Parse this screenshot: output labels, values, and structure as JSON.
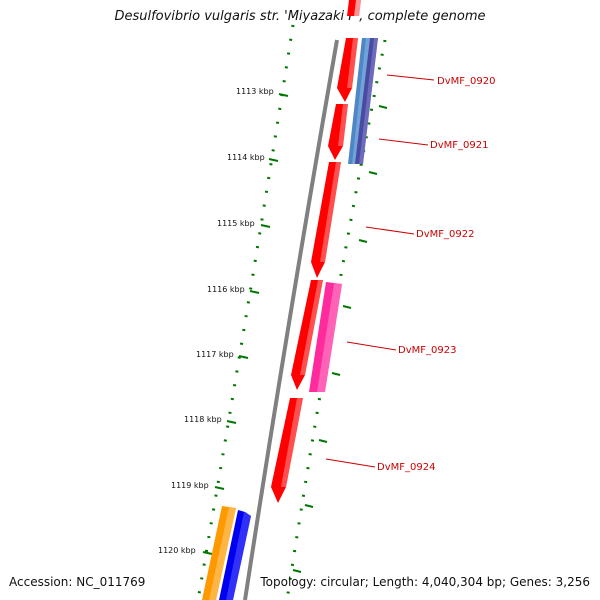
{
  "title": "Desulfovibrio vulgaris str. 'Miyazaki F', complete genome",
  "accession": "Accession: NC_011769",
  "summary": "Topology: circular; Length: 4,040,304 bp; Genes: 3,256",
  "ticks": [
    "1113 kbp",
    "1114 kbp",
    "1115 kbp",
    "1116 kbp",
    "1117 kbp",
    "1118 kbp",
    "1119 kbp",
    "1120 kbp"
  ],
  "gene_labels": [
    "DvMF_0920",
    "DvMF_0921",
    "DvMF_0922",
    "DvMF_0923",
    "DvMF_0924"
  ],
  "colors": {
    "backbone": "#808080",
    "cds_red": "#ff0000",
    "cds_pink": "#ff2a9b",
    "steelblue": "#4f86c6",
    "slate": "#4a4aa0",
    "orange": "#ff9900",
    "blue": "#0000ee",
    "tick_green": "#007700",
    "label_red": "#cc0000"
  }
}
